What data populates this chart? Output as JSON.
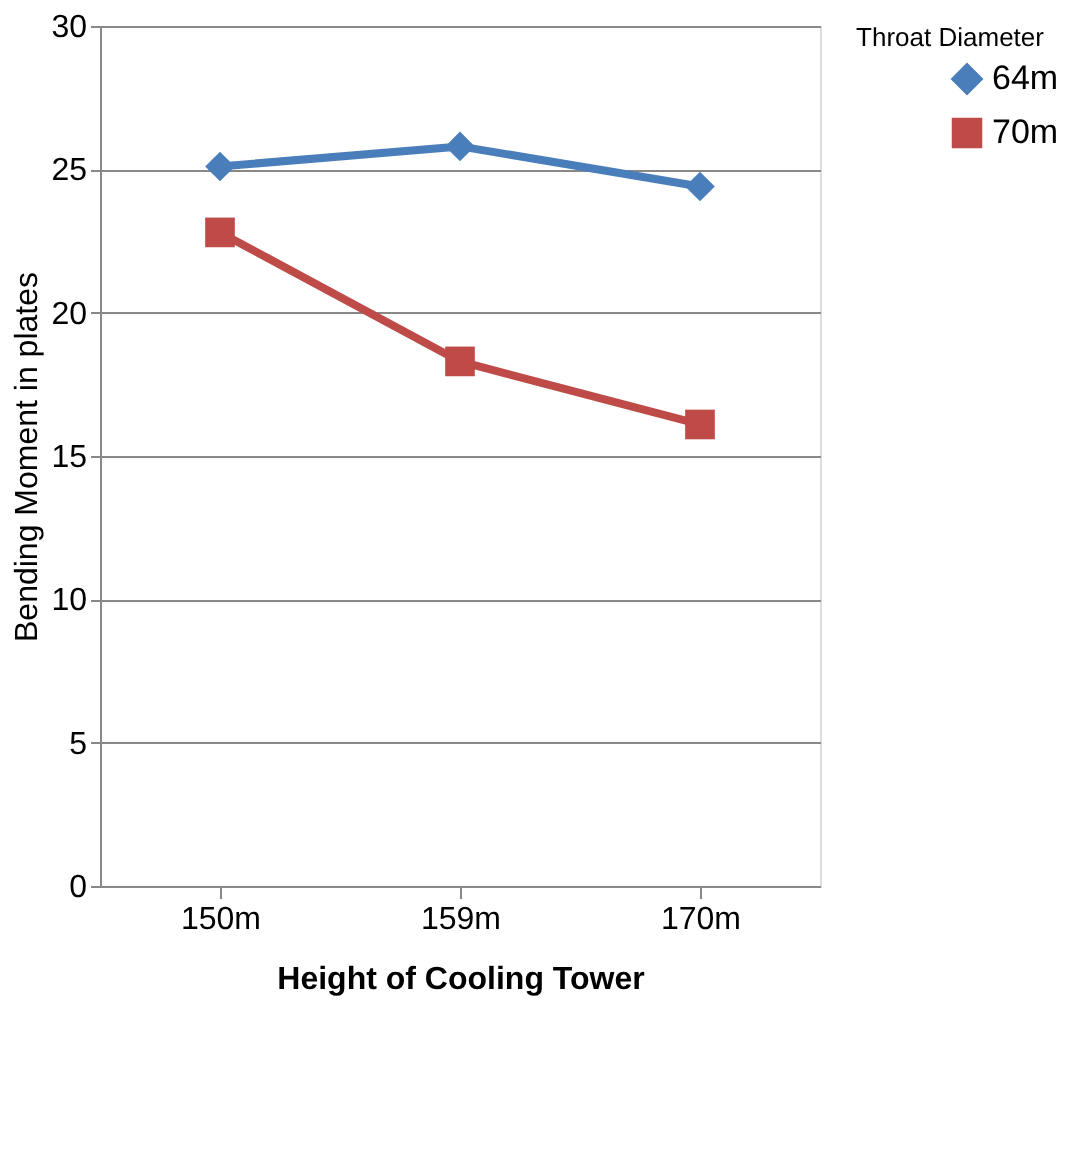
{
  "chart_data": {
    "type": "line",
    "xlabel": "Height of Cooling Tower",
    "ylabel": "Bending Moment in plates",
    "legend_title": "Throat Diameter",
    "categories": [
      "150m",
      "159m",
      "170m"
    ],
    "series": [
      {
        "name": "64m",
        "color": "#4a7ebb",
        "marker": "diamond",
        "values": [
          25.1,
          25.8,
          24.4
        ]
      },
      {
        "name": "70m",
        "color": "#be4b48",
        "marker": "square",
        "values": [
          22.8,
          18.3,
          16.1
        ]
      }
    ],
    "ylim": [
      0,
      30
    ],
    "yticks": [
      0,
      5,
      10,
      15,
      20,
      25,
      30
    ],
    "grid": "y",
    "legend": "right",
    "line_style": "solid"
  }
}
